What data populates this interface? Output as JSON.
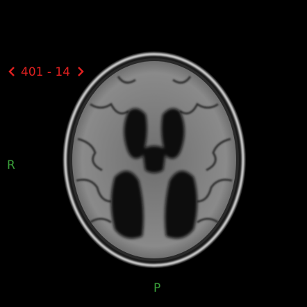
{
  "overlay": {
    "series_label": "401 - 14",
    "left_orientation": "R",
    "bottom_orientation": "P"
  }
}
